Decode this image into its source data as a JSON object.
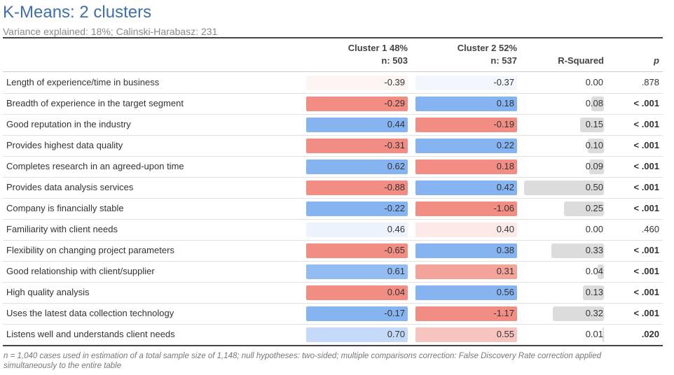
{
  "header": {
    "title": "K-Means: 2 clusters",
    "subtitle": "Variance explained: 18%; Calinski-Harabasz: 231"
  },
  "table": {
    "columns": [
      [
        "Cluster 1 48%",
        "n: 503"
      ],
      [
        "Cluster 2 52%",
        "n: 537"
      ],
      [
        "R-Squared"
      ],
      [
        "p"
      ]
    ],
    "rows": [
      {
        "label": "Length of experience/time in business",
        "cluster1": {
          "text": "-0.39",
          "fill": "#fdf5f4"
        },
        "cluster2": {
          "text": "-0.37",
          "fill": "#f3f7fd"
        },
        "r_squared": "0.00",
        "p": ".878",
        "p_bold": false
      },
      {
        "label": "Breadth of experience in the target segment",
        "cluster1": {
          "text": "-0.29",
          "fill": "#f28d84"
        },
        "cluster2": {
          "text": "0.18",
          "fill": "#85b4f0"
        },
        "r_squared": "0.08",
        "p": "< .001",
        "p_bold": true
      },
      {
        "label": "Good reputation in the industry",
        "cluster1": {
          "text": "0.44",
          "fill": "#85b4f0"
        },
        "cluster2": {
          "text": "-0.19",
          "fill": "#f28d84"
        },
        "r_squared": "0.15",
        "p": "< .001",
        "p_bold": true
      },
      {
        "label": "Provides highest data quality",
        "cluster1": {
          "text": "-0.31",
          "fill": "#f28d84"
        },
        "cluster2": {
          "text": "0.22",
          "fill": "#85b4f0"
        },
        "r_squared": "0.10",
        "p": "< .001",
        "p_bold": true
      },
      {
        "label": "Completes research in an agreed-upon time",
        "cluster1": {
          "text": "0.62",
          "fill": "#85b4f0"
        },
        "cluster2": {
          "text": "0.18",
          "fill": "#f28d84"
        },
        "r_squared": "0.09",
        "p": "< .001",
        "p_bold": true
      },
      {
        "label": "Provides data analysis services",
        "cluster1": {
          "text": "-0.88",
          "fill": "#f28d84"
        },
        "cluster2": {
          "text": "0.42",
          "fill": "#85b4f0"
        },
        "r_squared": "0.50",
        "p": "< .001",
        "p_bold": true
      },
      {
        "label": "Company is financially stable",
        "cluster1": {
          "text": "-0.22",
          "fill": "#85b4f0"
        },
        "cluster2": {
          "text": "-1.06",
          "fill": "#f28d84"
        },
        "r_squared": "0.25",
        "p": "< .001",
        "p_bold": true
      },
      {
        "label": "Familiarity with client needs",
        "cluster1": {
          "text": "0.46",
          "fill": "#edf3fd"
        },
        "cluster2": {
          "text": "0.40",
          "fill": "#fde9e8"
        },
        "r_squared": "0.00",
        "p": ".460",
        "p_bold": false
      },
      {
        "label": "Flexibility on changing project parameters",
        "cluster1": {
          "text": "-0.65",
          "fill": "#f28d84"
        },
        "cluster2": {
          "text": "0.38",
          "fill": "#85b4f0"
        },
        "r_squared": "0.33",
        "p": "< .001",
        "p_bold": true
      },
      {
        "label": "Good relationship with client/supplier",
        "cluster1": {
          "text": "0.61",
          "fill": "#93bdf2"
        },
        "cluster2": {
          "text": "0.31",
          "fill": "#f4a39b"
        },
        "r_squared": "0.04",
        "p": "< .001",
        "p_bold": true
      },
      {
        "label": "High quality analysis",
        "cluster1": {
          "text": "0.04",
          "fill": "#f28d84"
        },
        "cluster2": {
          "text": "0.56",
          "fill": "#85b4f0"
        },
        "r_squared": "0.13",
        "p": "< .001",
        "p_bold": true
      },
      {
        "label": "Uses the latest data collection technology",
        "cluster1": {
          "text": "-0.17",
          "fill": "#85b4f0"
        },
        "cluster2": {
          "text": "-1.17",
          "fill": "#f28d84"
        },
        "r_squared": "0.32",
        "p": "< .001",
        "p_bold": true
      },
      {
        "label": "Listens well and understands client needs",
        "cluster1": {
          "text": "0.70",
          "fill": "#c4daf8"
        },
        "cluster2": {
          "text": "0.55",
          "fill": "#f8c4c0"
        },
        "r_squared": "0.01",
        "p": ".020",
        "p_bold": true
      }
    ]
  },
  "footnote": [
    "n = 1,040 cases used in estimation of a total sample size of 1,148; null hypotheses: two-sided; multiple comparisons correction: False Discovery Rate correction applied",
    "simultaneously to the entire table"
  ]
}
